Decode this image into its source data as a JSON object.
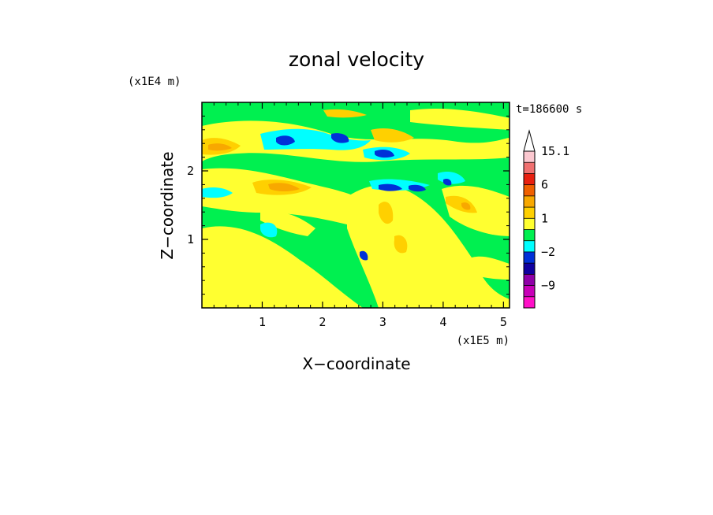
{
  "chart_data": {
    "type": "heatmap",
    "title": "zonal velocity",
    "time_label": "t=186600 s",
    "xlabel": "X−coordinate",
    "ylabel": "Z−coordinate",
    "x_unit_label": "(x1E5 m)",
    "y_unit_label": "(x1E4 m)",
    "x_ticks": [
      "1",
      "2",
      "3",
      "4",
      "5"
    ],
    "x_tick_values": [
      1,
      2,
      3,
      4,
      5
    ],
    "y_ticks": [
      "1",
      "2"
    ],
    "y_tick_values": [
      1,
      2
    ],
    "xlim": [
      0,
      5.1
    ],
    "ylim": [
      0,
      3
    ],
    "grid": false,
    "colorbar": {
      "labels": [
        "15.1",
        "6",
        "1",
        "−2",
        "−9"
      ],
      "levels_top_to_bottom": [
        15.1,
        12,
        9,
        6,
        3,
        2,
        1,
        0,
        -1,
        -2,
        -3,
        -6,
        -9,
        -12,
        -15.1
      ],
      "colors_top_to_bottom": [
        "#fcc8d0",
        "#f07070",
        "#e82010",
        "#f06000",
        "#f8a800",
        "#ffd000",
        "#ffff30",
        "#00f050",
        "#00ffff",
        "#0030d8",
        "#1000a0",
        "#9000a8",
        "#c800b8",
        "#ff10c8"
      ]
    },
    "field_description_colors": {
      "background": "#00f050",
      "weak_positive": "#ffff30",
      "positive": "#ffd000",
      "strong_positive": "#f8a800",
      "weak_negative": "#00ffff",
      "negative": "#0030d8"
    }
  }
}
